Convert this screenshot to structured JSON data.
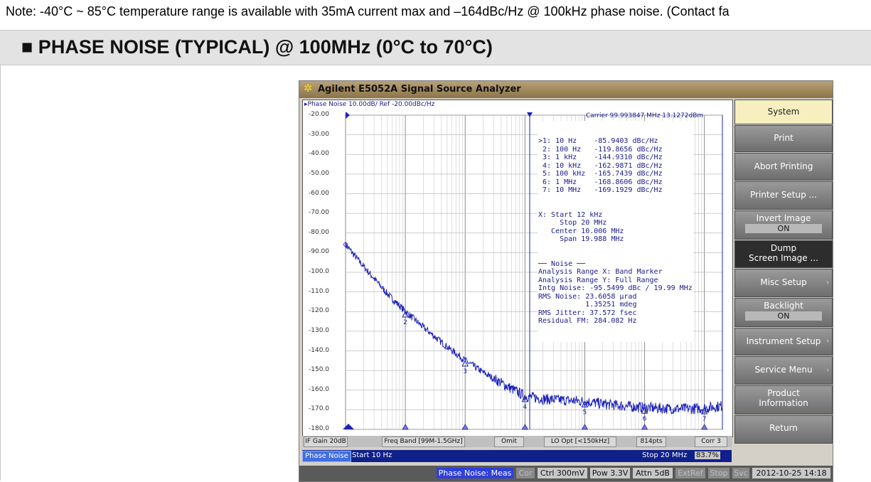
{
  "note": "Note: -40°C ~ 85°C temperature range is available with 35mA current max and –164dBc/Hz @ 100kHz phase noise. (Contact fa",
  "section_title": "■ PHASE NOISE (TYPICAL) @ 100MHz (0°C to 70°C)",
  "app_title": "Agilent E5052A Signal Source Analyzer",
  "screen": {
    "trace_header": "▸Phase Noise 10.00dB/ Ref -20.00dBc/Hz",
    "carrier": "Carrier 99.993847 MHz   13.1272dBm"
  },
  "markers": [
    {
      "id": ">1:",
      "freq": "10 Hz",
      "value": "-85.9403 dBc/Hz"
    },
    {
      "id": "2:",
      "freq": "100 Hz",
      "value": "-119.8656 dBc/Hz"
    },
    {
      "id": "3:",
      "freq": "1 kHz",
      "value": "-144.9310 dBc/Hz"
    },
    {
      "id": "4:",
      "freq": "10 kHz",
      "value": "-162.9871 dBc/Hz"
    },
    {
      "id": "5:",
      "freq": "100 kHz",
      "value": "-165.7439 dBc/Hz"
    },
    {
      "id": "6:",
      "freq": "1 MHz",
      "value": "-168.8606 dBc/Hz"
    },
    {
      "id": "7:",
      "freq": "10 MHz",
      "value": "-169.1929 dBc/Hz"
    }
  ],
  "range_lines": [
    "X: Start 12 kHz",
    "     Stop 20 MHz",
    "   Center 10.006 MHz",
    "     Span 19.988 MHz"
  ],
  "noise_lines": [
    "── Noise ──",
    "Analysis Range X: Band Marker",
    "Analysis Range Y: Full Range",
    "Intg Noise: -95.5499 dBc / 19.99 MHz",
    "RMS Noise: 23.6058 µrad",
    "           1.35251 mdeg",
    "RMS Jitter: 37.572 fsec",
    "Residual FM: 284.082 Hz"
  ],
  "status_row": [
    "IF Gain 20dB",
    "Freq Band [99M-1.5GHz]",
    "Omit",
    "LO Opt [<150kHz]",
    "814pts",
    "Corr 3"
  ],
  "blue_row": {
    "tab": "Phase Noise",
    "start": "Start 10 Hz",
    "stop": "Stop 20 MHz",
    "pct": "83.7%"
  },
  "bottom_bar": [
    "Phase Noise: Meas",
    "Cor",
    "Ctrl 300mV",
    "Pow 3.3V",
    "Attn 5dB",
    "ExtRef",
    "Stop",
    "Svc",
    "2012-10-25 14:18"
  ],
  "softkeys": [
    {
      "label": "System"
    },
    {
      "label": "Print"
    },
    {
      "label": "Abort Printing"
    },
    {
      "label": "Printer Setup ..."
    },
    {
      "label": "Invert Image",
      "sub": "ON"
    },
    {
      "label": "Dump",
      "label2": "Screen Image ..."
    },
    {
      "label": "Misc Setup"
    },
    {
      "label": "Backlight",
      "sub": "ON"
    },
    {
      "label": "Instrument Setup"
    },
    {
      "label": "Service Menu"
    },
    {
      "label": "Product",
      "label2": "Information"
    },
    {
      "label": "Return"
    }
  ],
  "chart_data": {
    "type": "line",
    "xscale": "log",
    "xlim": [
      10,
      20000000
    ],
    "ylim": [
      -180,
      -20
    ],
    "yticks": [
      "-20.00",
      "-30.00",
      "-40.00",
      "-50.00",
      "-60.00",
      "-70.00",
      "-80.00",
      "-90.00",
      "-100.0",
      "-110.0",
      "-120.0",
      "-130.0",
      "-140.0",
      "-150.0",
      "-160.0",
      "-170.0",
      "-180.0"
    ],
    "x": [
      10,
      20,
      50,
      100,
      200,
      500,
      1000,
      2000,
      5000,
      10000,
      20000,
      50000,
      100000,
      200000,
      500000,
      1000000,
      2000000,
      5000000,
      10000000,
      20000000
    ],
    "y": [
      -85.9,
      -97,
      -111,
      -119.9,
      -128,
      -138,
      -144.9,
      -151,
      -158,
      -163,
      -164.5,
      -165.2,
      -165.7,
      -167,
      -168.2,
      -168.9,
      -169.3,
      -169.5,
      -169.2,
      -168
    ],
    "marker_labels": [
      "2",
      "3",
      "4",
      "5",
      "6",
      "7"
    ],
    "marker_x": [
      100,
      1000,
      10000,
      100000,
      1000000,
      10000000
    ],
    "marker_y": [
      -119.9,
      -144.9,
      -163.0,
      -165.7,
      -168.9,
      -169.2
    ],
    "grid": true
  }
}
